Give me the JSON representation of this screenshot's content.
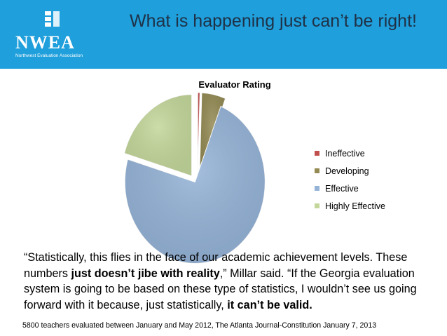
{
  "header": {
    "logo_text": "NWEA",
    "logo_subtext": "Northwest Evaluation Association",
    "title": "What is happening just can’t be right!",
    "banner_color": "#1f9fdb"
  },
  "chart_data": {
    "type": "pie",
    "title": "Evaluator Rating",
    "categories": [
      "Ineffective",
      "Developing",
      "Effective",
      "Highly Effective"
    ],
    "values": [
      0.5,
      5.5,
      73.5,
      20.5
    ],
    "colors": [
      "#c0504d",
      "#948a54",
      "#95b3d7",
      "#c4d79b"
    ],
    "exploded": true,
    "legend_position": "right"
  },
  "quote": {
    "part1": "“Statistically, this flies in the face of our academic achievement levels. These numbers ",
    "bold1": "just doesn’t jibe with reality",
    "part2": ",” Millar said. “If the Georgia evaluation system is going to be based on these type of statistics, I wouldn’t see us going forward with it because, just statistically, ",
    "bold2": "it can’t be valid."
  },
  "source": "5800 teachers evaluated between January and May 2012, The Atlanta Journal-Constitution January 7, 2013"
}
